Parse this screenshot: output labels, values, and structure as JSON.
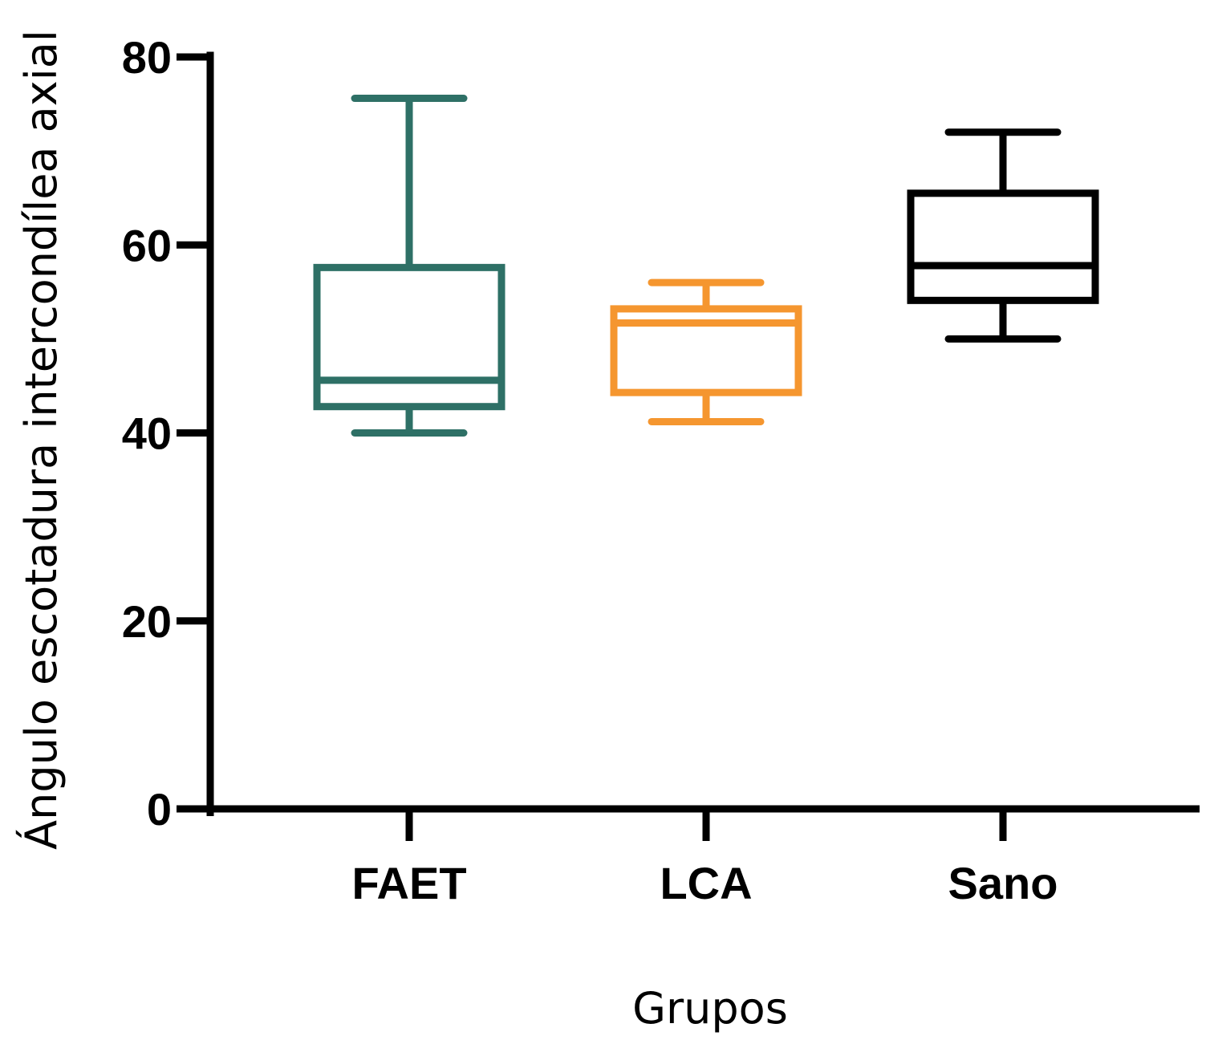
{
  "chart_data": {
    "type": "boxplot",
    "title": "",
    "xlabel": "Grupos",
    "ylabel": "Ángulo escotadura intercondílea axial",
    "ylim": [
      0,
      80
    ],
    "yticks": [
      0,
      20,
      40,
      60,
      80
    ],
    "ytick_labels": [
      "0",
      "20",
      "40",
      "60",
      "80"
    ],
    "grid": false,
    "categories": [
      "FAET",
      "LCA",
      "Sano"
    ],
    "series": [
      {
        "category": "FAET",
        "color": "#2e7066",
        "min": 40,
        "q1": 42.8,
        "median": 45.6,
        "q3": 57.6,
        "max": 75.6
      },
      {
        "category": "LCA",
        "color": "#f5962f",
        "min": 41.2,
        "q1": 44.3,
        "median": 51.7,
        "q3": 53.2,
        "max": 56
      },
      {
        "category": "Sano",
        "color": "#000000",
        "min": 50,
        "q1": 54.1,
        "median": 57.8,
        "q3": 65.5,
        "max": 72
      }
    ]
  }
}
